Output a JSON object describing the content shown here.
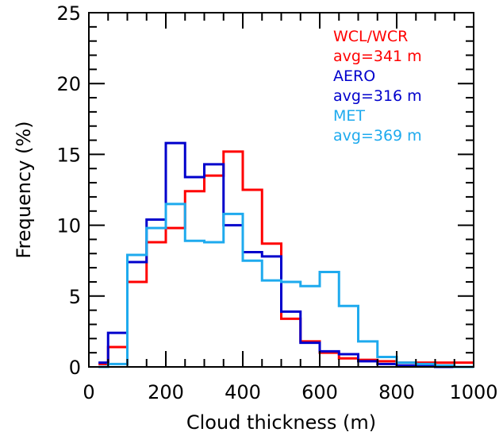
{
  "chart_data": {
    "type": "line",
    "style": "step-histogram",
    "xlabel": "Cloud thickness (m)",
    "ylabel": "Frequency (%)",
    "xlim": [
      0,
      1000
    ],
    "ylim": [
      0,
      25
    ],
    "xticks": [
      0,
      200,
      400,
      600,
      800,
      1000
    ],
    "yticks": [
      0,
      5,
      10,
      15,
      20,
      25
    ],
    "xtick_labels": [
      "0",
      "200",
      "400",
      "600",
      "800",
      "1000"
    ],
    "ytick_labels": [
      "0",
      "5",
      "10",
      "15",
      "20",
      "25"
    ],
    "grid": false,
    "legend_position": "top-right",
    "bin_edges": [
      25,
      50,
      100,
      150,
      200,
      250,
      300,
      350,
      400,
      450,
      500,
      550,
      600,
      650,
      700,
      750,
      800,
      850,
      900,
      950,
      1000
    ],
    "series": [
      {
        "label_lines": [
          "WCL/WCR",
          "avg=341 m"
        ],
        "color": "#ff0000",
        "values": [
          0.2,
          1.4,
          6.0,
          8.8,
          9.8,
          12.4,
          13.5,
          15.2,
          12.5,
          8.7,
          3.4,
          1.8,
          1.0,
          0.6,
          0.5,
          0.4,
          0.3,
          0.3,
          0.3,
          0.3
        ]
      },
      {
        "label_lines": [
          "AERO",
          "avg=316 m"
        ],
        "color": "#0000cc",
        "values": [
          0.3,
          2.4,
          7.4,
          10.4,
          15.8,
          13.4,
          14.3,
          10.0,
          8.1,
          7.8,
          3.9,
          1.7,
          1.1,
          0.9,
          0.4,
          0.2,
          0.1,
          0.1,
          0.0,
          0.0
        ]
      },
      {
        "label_lines": [
          "MET",
          "avg=369 m"
        ],
        "color": "#1eaaee",
        "values": [
          0.0,
          0.2,
          7.9,
          9.8,
          11.5,
          8.9,
          8.8,
          10.8,
          7.5,
          6.1,
          6.0,
          5.7,
          6.7,
          4.3,
          1.8,
          0.7,
          0.3,
          0.2,
          0.1,
          0.0
        ]
      }
    ]
  }
}
